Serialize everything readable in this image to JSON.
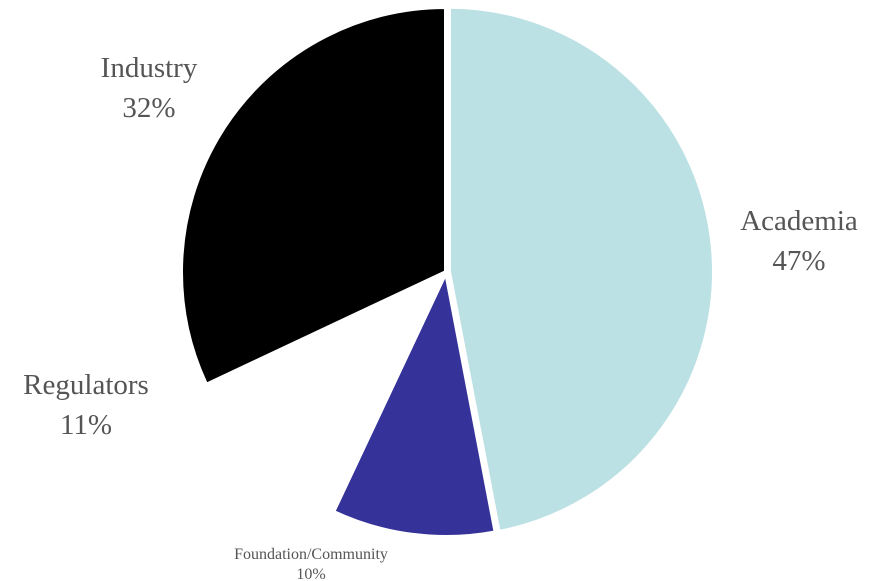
{
  "chart_data": {
    "type": "pie",
    "title": "",
    "slices": [
      {
        "label": "Academia",
        "value": 47,
        "value_label": "47%",
        "color": "#bce1e4"
      },
      {
        "label": "Foundation/Community",
        "value": 10,
        "value_label": "10%",
        "color": "#353399"
      },
      {
        "label": "Regulators",
        "value": 11,
        "value_label": "11%",
        "color": "#ffffff"
      },
      {
        "label": "Industry",
        "value": 32,
        "value_label": "32%",
        "color": "#000000"
      }
    ],
    "start_angle_deg": 0,
    "direction": "clockwise",
    "legend": "none"
  }
}
